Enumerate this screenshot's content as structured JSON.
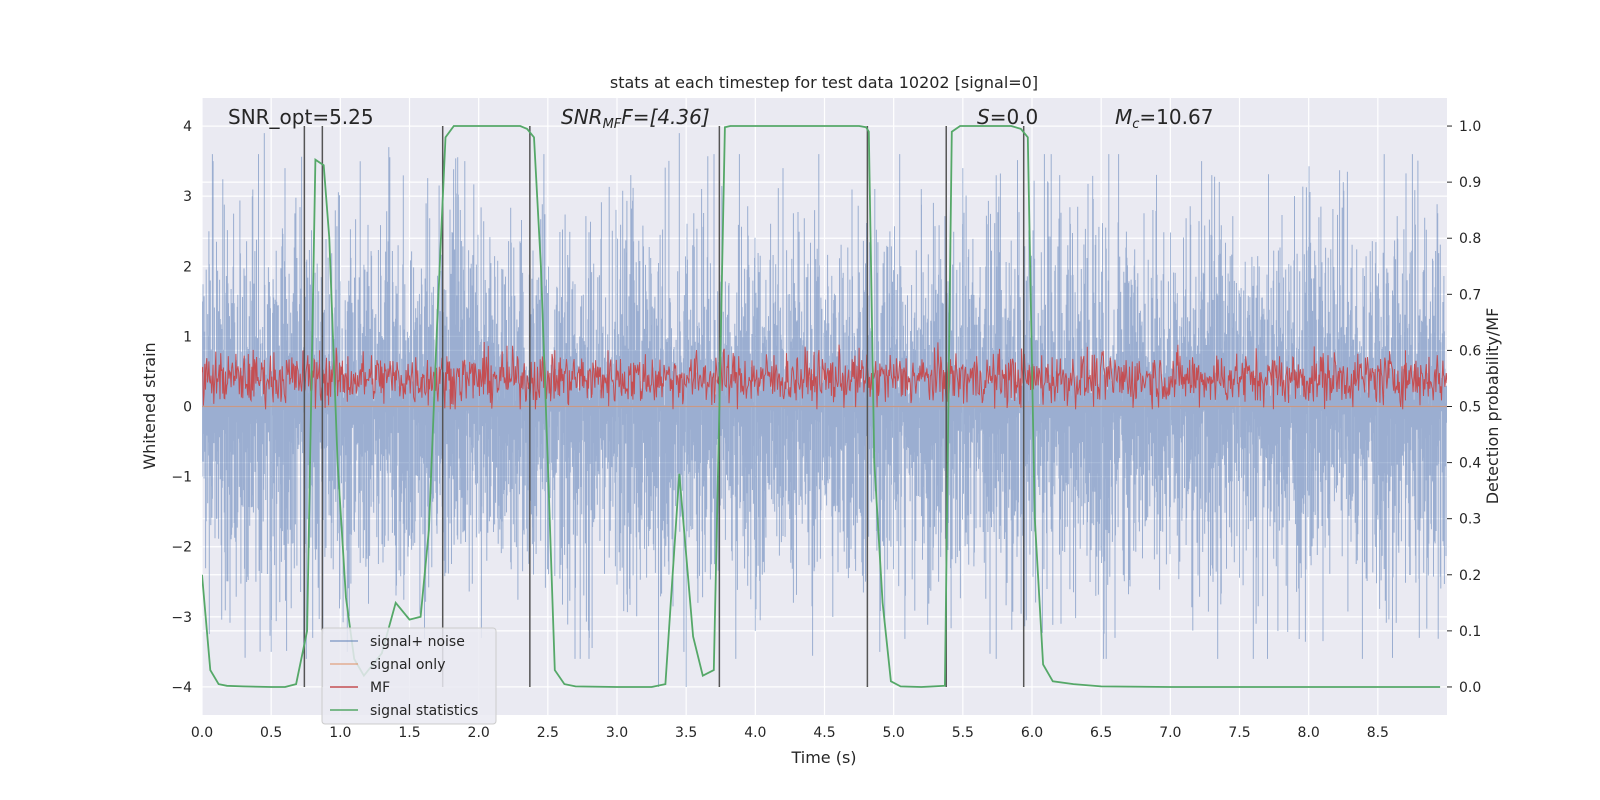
{
  "chart_data": {
    "type": "line",
    "title": "stats at each timestep for test data 10202 [signal=0]",
    "xlabel": "Time (s)",
    "ylabel": "Whitened strain",
    "ylabel_right": "Detection probability/MF",
    "xlim": [
      0,
      9.0
    ],
    "ylim": [
      -4.4,
      4.4
    ],
    "ylim_right": [
      -0.05,
      1.05
    ],
    "x_ticks": [
      0.0,
      0.5,
      1.0,
      1.5,
      2.0,
      2.5,
      3.0,
      3.5,
      4.0,
      4.5,
      5.0,
      5.5,
      6.0,
      6.5,
      7.0,
      7.5,
      8.0,
      8.5
    ],
    "y_ticks": [
      -4,
      -3,
      -2,
      -1,
      0,
      1,
      2,
      3,
      4
    ],
    "y_ticks_right": [
      0.0,
      0.1,
      0.2,
      0.3,
      0.4,
      0.5,
      0.6,
      0.7,
      0.8,
      0.9,
      1.0
    ],
    "grid": true,
    "legend_placement": "lower-left",
    "annotations": {
      "snr_opt": "SNR_opt=5.25",
      "snr_mf_base": "SNR",
      "snr_mf_sub": "MF",
      "snr_mf_rest": "F=[4.36]",
      "s_var": "S",
      "s_rest": "=0.0",
      "mc_var": "M",
      "mc_sub": "c",
      "mc_rest": "=10.67"
    },
    "colors": {
      "background": "#eaeaf2",
      "grid": "#ffffff",
      "signal_noise": "#4c72b0",
      "signal_only": "#dd8452",
      "mf": "#c44e52",
      "stats": "#55a868",
      "vline": "#555555"
    },
    "series": [
      {
        "name": "signal+ noise",
        "axis": "left",
        "style": "dense-noise",
        "envelope_typical": [
          -1.6,
          1.6
        ],
        "extremes": [
          {
            "x": 0.05,
            "y": 2.5
          },
          {
            "x": 0.08,
            "y": 3.5
          },
          {
            "x": 0.45,
            "y": 3.9
          },
          {
            "x": 0.5,
            "y": -3.5
          },
          {
            "x": 0.6,
            "y": 3.4
          },
          {
            "x": 0.8,
            "y": -3.3
          },
          {
            "x": 1.05,
            "y": -3.5
          },
          {
            "x": 1.35,
            "y": 3.7
          },
          {
            "x": 1.9,
            "y": 3.5
          },
          {
            "x": 2.02,
            "y": -3.3
          },
          {
            "x": 2.8,
            "y": -3.3
          },
          {
            "x": 3.1,
            "y": 3.3
          },
          {
            "x": 3.3,
            "y": -4.0
          },
          {
            "x": 3.45,
            "y": 3.9
          },
          {
            "x": 3.5,
            "y": -4.0
          },
          {
            "x": 4.0,
            "y": -3.2
          },
          {
            "x": 4.2,
            "y": 3.4
          },
          {
            "x": 4.9,
            "y": -3.5
          },
          {
            "x": 5.2,
            "y": 3.1
          },
          {
            "x": 5.5,
            "y": 3.4
          },
          {
            "x": 6.2,
            "y": 3.3
          },
          {
            "x": 6.6,
            "y": -3.3
          },
          {
            "x": 7.3,
            "y": 3.3
          },
          {
            "x": 7.6,
            "y": -3.6
          },
          {
            "x": 8.25,
            "y": 3.2
          },
          {
            "x": 8.75,
            "y": 3.6
          },
          {
            "x": 8.8,
            "y": -3.3
          }
        ]
      },
      {
        "name": "signal only",
        "axis": "left",
        "x": [
          0.0,
          9.0
        ],
        "y": [
          0.0,
          0.0
        ]
      },
      {
        "name": "MF",
        "axis": "right",
        "style": "dense-noise",
        "center": 0.55,
        "envelope_typical": [
          0.5,
          0.61
        ],
        "extremes": [
          {
            "x": 2.37,
            "y": 0.63
          },
          {
            "x": 0.85,
            "y": 0.6
          },
          {
            "x": 8.7,
            "y": 0.6
          }
        ]
      },
      {
        "name": "signal statistics",
        "axis": "right",
        "x": [
          0.0,
          0.06,
          0.12,
          0.18,
          0.3,
          0.5,
          0.6,
          0.68,
          0.76,
          0.82,
          0.88,
          0.92,
          0.98,
          1.04,
          1.1,
          1.17,
          1.3,
          1.4,
          1.5,
          1.58,
          1.64,
          1.7,
          1.76,
          1.82,
          1.9,
          2.0,
          2.2,
          2.3,
          2.35,
          2.4,
          2.45,
          2.5,
          2.55,
          2.62,
          2.7,
          3.0,
          3.25,
          3.35,
          3.45,
          3.55,
          3.62,
          3.7,
          3.74,
          3.78,
          3.82,
          3.9,
          4.2,
          4.6,
          4.75,
          4.8,
          4.82,
          4.86,
          4.92,
          4.98,
          5.05,
          5.2,
          5.37,
          5.42,
          5.48,
          5.55,
          5.7,
          5.85,
          5.92,
          5.97,
          6.02,
          6.08,
          6.15,
          6.3,
          6.5,
          7.0,
          8.0,
          8.95
        ],
        "y": [
          0.2,
          0.03,
          0.005,
          0.002,
          0.001,
          0.0,
          0.0,
          0.005,
          0.1,
          0.94,
          0.93,
          0.8,
          0.4,
          0.16,
          0.05,
          0.02,
          0.06,
          0.15,
          0.12,
          0.125,
          0.28,
          0.65,
          0.98,
          1.0,
          1.0,
          1.0,
          1.0,
          1.0,
          0.995,
          0.98,
          0.75,
          0.4,
          0.03,
          0.005,
          0.001,
          0.0,
          0.0,
          0.005,
          0.38,
          0.09,
          0.02,
          0.03,
          0.5,
          0.998,
          1.0,
          1.0,
          1.0,
          1.0,
          1.0,
          0.998,
          0.99,
          0.4,
          0.15,
          0.01,
          0.001,
          0.0,
          0.002,
          0.99,
          1.0,
          1.0,
          1.0,
          1.0,
          0.995,
          0.98,
          0.3,
          0.04,
          0.01,
          0.005,
          0.001,
          0.0,
          0.0,
          0.0
        ]
      }
    ],
    "vertical_lines_x": [
      0.74,
      0.87,
      1.74,
      2.37,
      3.74,
      4.81,
      5.38,
      5.94
    ]
  }
}
